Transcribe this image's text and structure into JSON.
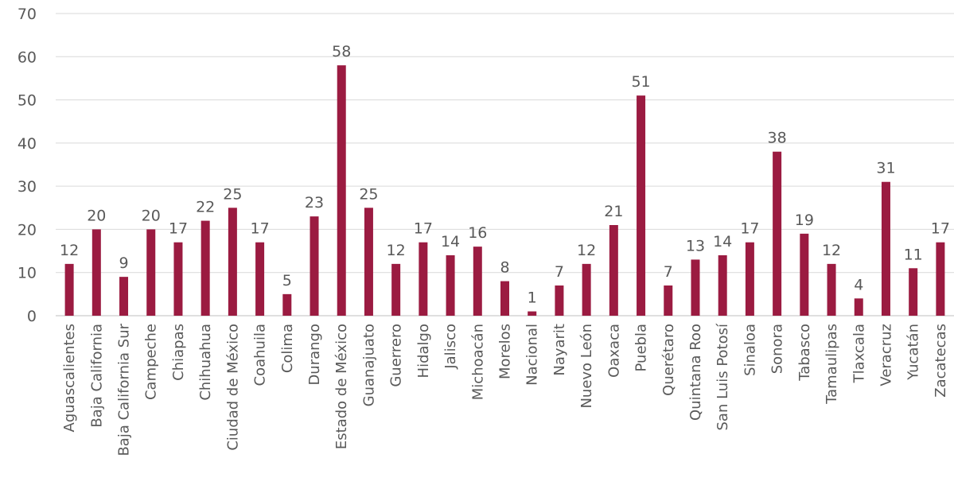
{
  "chart_data": {
    "type": "bar",
    "title": "",
    "xlabel": "",
    "ylabel": "",
    "ylim": [
      0,
      70
    ],
    "yticks": [
      0,
      10,
      20,
      30,
      40,
      50,
      60,
      70
    ],
    "grid": true,
    "legend": "none",
    "bar_color": "#9b1b41",
    "categories": [
      "Aguascalientes",
      "Baja California",
      "Baja California Sur",
      "Campeche",
      "Chiapas",
      "Chihuahua",
      "Ciudad de México",
      "Coahuila",
      "Colima",
      "Durango",
      "Estado de México",
      "Guanajuato",
      "Guerrero",
      "Hidalgo",
      "Jalisco",
      "Michoacán",
      "Morelos",
      "Nacional",
      "Nayarit",
      "Nuevo León",
      "Oaxaca",
      "Puebla",
      "Querétaro",
      "Quintana Roo",
      "San Luis Potosí",
      "Sinaloa",
      "Sonora",
      "Tabasco",
      "Tamaulipas",
      "Tlaxcala",
      "Veracruz",
      "Yucatán",
      "Zacatecas"
    ],
    "values": [
      12,
      20,
      9,
      20,
      17,
      22,
      25,
      17,
      5,
      23,
      58,
      25,
      12,
      17,
      14,
      16,
      8,
      1,
      7,
      12,
      21,
      51,
      7,
      13,
      14,
      17,
      38,
      19,
      12,
      4,
      31,
      11,
      17
    ]
  }
}
